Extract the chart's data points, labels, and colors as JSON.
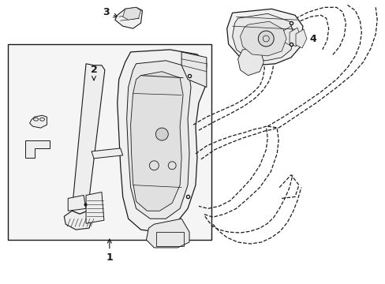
{
  "background_color": "#ffffff",
  "line_color": "#1a1a1a",
  "light_fill": "#f5f5f5",
  "figsize": [
    4.89,
    3.6
  ],
  "dpi": 100
}
